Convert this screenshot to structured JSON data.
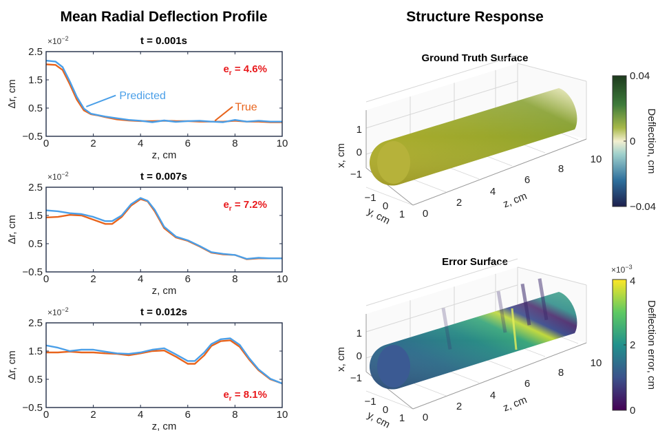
{
  "left_title": "Mean Radial Deflection Profile",
  "right_title": "Structure Response",
  "colors": {
    "predicted": "#4a9fe8",
    "true": "#e8641c",
    "error_red": "#e8191c",
    "axis": "#1f2a44"
  },
  "chart_data": [
    {
      "type": "line",
      "panel_title": "t = 0.001s",
      "xlabel": "z, cm",
      "ylabel": "Δr, cm",
      "y_exponent_label": "×10",
      "y_exponent_power": "−2",
      "xlim": [
        0,
        10
      ],
      "ylim": [
        -0.5,
        2.5
      ],
      "xticks": [
        0,
        2,
        4,
        6,
        8,
        10
      ],
      "yticks": [
        -0.5,
        0.5,
        1.5,
        2.5
      ],
      "xtick_labels": [
        "0",
        "2",
        "4",
        "6",
        "8",
        "10"
      ],
      "ytick_labels": [
        "−0.5",
        "0.5",
        "1.5",
        "2.5"
      ],
      "error_label": "e",
      "error_sub": "r",
      "error_value": " = 4.6%",
      "legend": {
        "predicted": "Predicted",
        "true": "True"
      },
      "series": [
        {
          "name": "True",
          "x": [
            0,
            0.4,
            0.7,
            1.0,
            1.3,
            1.6,
            1.9,
            2.2,
            2.5,
            3.0,
            3.5,
            4.0,
            4.5,
            5.0,
            5.5,
            6.0,
            6.5,
            7.0,
            7.5,
            8.0,
            8.5,
            9.0,
            9.5,
            10.0
          ],
          "y": [
            2.05,
            2.03,
            1.85,
            1.35,
            0.8,
            0.42,
            0.28,
            0.24,
            0.18,
            0.1,
            0.06,
            0.04,
            0.04,
            0.05,
            0.04,
            0.04,
            0.02,
            0.02,
            0.02,
            0.05,
            0.02,
            0.02,
            0.0,
            0.0
          ]
        },
        {
          "name": "Predicted",
          "x": [
            0,
            0.4,
            0.7,
            1.0,
            1.3,
            1.6,
            1.9,
            2.2,
            2.5,
            3.0,
            3.5,
            4.0,
            4.5,
            5.0,
            5.5,
            6.0,
            6.5,
            7.0,
            7.5,
            8.0,
            8.5,
            9.0,
            9.5,
            10.0
          ],
          "y": [
            2.18,
            2.15,
            1.95,
            1.45,
            0.9,
            0.48,
            0.3,
            0.25,
            0.2,
            0.14,
            0.08,
            0.05,
            0.0,
            0.06,
            0.01,
            0.04,
            0.05,
            0.02,
            0.0,
            0.08,
            0.02,
            0.05,
            0.02,
            0.02
          ]
        }
      ]
    },
    {
      "type": "line",
      "panel_title": "t = 0.007s",
      "xlabel": "z, cm",
      "ylabel": "Δr, cm",
      "y_exponent_label": "×10",
      "y_exponent_power": "−2",
      "xlim": [
        0,
        10
      ],
      "ylim": [
        -0.5,
        2.5
      ],
      "xticks": [
        0,
        2,
        4,
        6,
        8,
        10
      ],
      "yticks": [
        -0.5,
        0.5,
        1.5,
        2.5
      ],
      "xtick_labels": [
        "0",
        "2",
        "4",
        "6",
        "8",
        "10"
      ],
      "ytick_labels": [
        "−0.5",
        "0.5",
        "1.5",
        "2.5"
      ],
      "error_label": "e",
      "error_sub": "r",
      "error_value": " = 7.2%",
      "series": [
        {
          "name": "True",
          "x": [
            0,
            0.5,
            1.0,
            1.5,
            2.0,
            2.5,
            2.8,
            3.2,
            3.6,
            4.0,
            4.3,
            4.6,
            5.0,
            5.5,
            6.0,
            6.5,
            7.0,
            7.5,
            8.0,
            8.5,
            9.0,
            9.5,
            10.0
          ],
          "y": [
            1.43,
            1.45,
            1.52,
            1.5,
            1.35,
            1.2,
            1.2,
            1.45,
            1.85,
            2.08,
            2.0,
            1.65,
            1.05,
            0.72,
            0.6,
            0.4,
            0.18,
            0.12,
            0.1,
            -0.05,
            -0.02,
            -0.02,
            -0.02
          ]
        },
        {
          "name": "Predicted",
          "x": [
            0,
            0.5,
            1.0,
            1.5,
            2.0,
            2.5,
            2.8,
            3.2,
            3.6,
            4.0,
            4.3,
            4.6,
            5.0,
            5.5,
            6.0,
            6.5,
            7.0,
            7.5,
            8.0,
            8.5,
            9.0,
            9.5,
            10.0
          ],
          "y": [
            1.68,
            1.65,
            1.58,
            1.55,
            1.45,
            1.3,
            1.3,
            1.5,
            1.9,
            2.12,
            2.02,
            1.7,
            1.1,
            0.75,
            0.62,
            0.42,
            0.2,
            0.14,
            0.1,
            -0.04,
            0.0,
            -0.02,
            -0.02
          ]
        }
      ]
    },
    {
      "type": "line",
      "panel_title": "t = 0.012s",
      "xlabel": "z, cm",
      "ylabel": "Δr, cm",
      "y_exponent_label": "×10",
      "y_exponent_power": "−2",
      "xlim": [
        0,
        10
      ],
      "ylim": [
        -0.5,
        2.5
      ],
      "xticks": [
        0,
        2,
        4,
        6,
        8,
        10
      ],
      "yticks": [
        -0.5,
        0.5,
        1.5,
        2.5
      ],
      "xtick_labels": [
        "0",
        "2",
        "4",
        "6",
        "8",
        "10"
      ],
      "ytick_labels": [
        "−0.5",
        "0.5",
        "1.5",
        "2.5"
      ],
      "error_label": "e",
      "error_sub": "r",
      "error_value": " = 8.1%",
      "series": [
        {
          "name": "True",
          "x": [
            0,
            0.5,
            1.0,
            1.5,
            2.0,
            2.5,
            3.0,
            3.5,
            4.0,
            4.5,
            5.0,
            5.5,
            6.0,
            6.3,
            6.7,
            7.0,
            7.4,
            7.8,
            8.2,
            8.6,
            9.0,
            9.5,
            10.0
          ],
          "y": [
            1.45,
            1.45,
            1.48,
            1.45,
            1.45,
            1.42,
            1.4,
            1.35,
            1.42,
            1.5,
            1.52,
            1.3,
            1.05,
            1.05,
            1.35,
            1.68,
            1.85,
            1.88,
            1.65,
            1.2,
            0.82,
            0.5,
            0.35
          ]
        },
        {
          "name": "Predicted",
          "x": [
            0,
            0.5,
            1.0,
            1.5,
            2.0,
            2.5,
            3.0,
            3.5,
            4.0,
            4.5,
            5.0,
            5.5,
            6.0,
            6.3,
            6.7,
            7.0,
            7.4,
            7.8,
            8.2,
            8.6,
            9.0,
            9.5,
            10.0
          ],
          "y": [
            1.7,
            1.62,
            1.5,
            1.55,
            1.55,
            1.48,
            1.42,
            1.4,
            1.45,
            1.55,
            1.6,
            1.38,
            1.15,
            1.15,
            1.45,
            1.75,
            1.92,
            1.95,
            1.72,
            1.25,
            0.85,
            0.52,
            0.35
          ]
        }
      ]
    }
  ],
  "surfaces": [
    {
      "title": "Ground Truth Surface",
      "title_color": "#000000",
      "zlabel": "z, cm",
      "ylabel": "y, cm",
      "xlabel": "x, cm",
      "x_ticks": [
        "1",
        "0",
        "−1"
      ],
      "y_ticks": [
        "−1",
        "0",
        "1"
      ],
      "z_ticks": [
        "0",
        "2",
        "4",
        "6",
        "8",
        "10"
      ],
      "colorbar_label": "Deflection, cm",
      "colorbar_ticks": [
        "0.04",
        "0",
        "−0.04"
      ],
      "colorbar_exponent": ""
    },
    {
      "title": "Error Surface",
      "title_color": "#e8191c",
      "zlabel": "z, cm",
      "ylabel": "y, cm",
      "xlabel": "x, cm",
      "x_ticks": [
        "1",
        "0",
        "−1"
      ],
      "y_ticks": [
        "−1",
        "0",
        "1"
      ],
      "z_ticks": [
        "0",
        "2",
        "4",
        "6",
        "8",
        "10"
      ],
      "colorbar_label": "Deflection error, cm",
      "colorbar_ticks": [
        "4",
        "2",
        "0"
      ],
      "colorbar_exponent_label": "×10",
      "colorbar_exponent_power": "−3"
    }
  ]
}
